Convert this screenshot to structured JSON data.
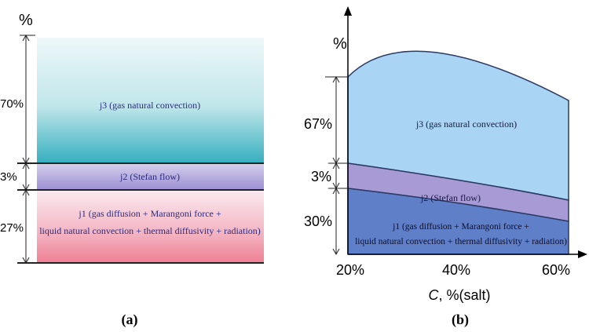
{
  "panel_a": {
    "percent_symbol": "%",
    "layers": [
      {
        "percent_label": "70%",
        "share": 70,
        "text": "j3 (gas natural convection)",
        "text2": ""
      },
      {
        "percent_label": "3%",
        "share": 3,
        "text": "j2 (Stefan flow)",
        "text2": ""
      },
      {
        "percent_label": "27%",
        "share": 27,
        "text": "j1 (gas diffusion + Marangoni force +",
        "text2": "liquid natural convection + thermal diffusivity + radiation)"
      }
    ],
    "caption": "(a)"
  },
  "panel_b": {
    "y_symbol": "%",
    "x_ticks": [
      "20%",
      "40%",
      "60%"
    ],
    "x_axis_label_var": "C",
    "x_axis_label_rest": ", %(salt)",
    "segment_labels": [
      "67%",
      "3%",
      "30%"
    ],
    "layers": {
      "j3": "j3 (gas natural convection)",
      "j2": "j2 (Stefan flow)",
      "j1_line1": "j1 (gas diffusion + Marangoni force +",
      "j1_line2": "liquid natural convection + thermal diffusivity + radiation)"
    },
    "caption": "(b)"
  },
  "colors": {
    "j3_a_top": "#eef7f9",
    "j3_a_bottom": "#35aebf",
    "j2_a": "#b3a9dc",
    "j1_a_top": "#f9e2e8",
    "j1_a_bottom": "#f08296",
    "j3_b": "#a9d4f3",
    "j2_b": "#a79ad5",
    "j1_b": "#5f7fc8",
    "text_purple": "#2a2a80"
  }
}
